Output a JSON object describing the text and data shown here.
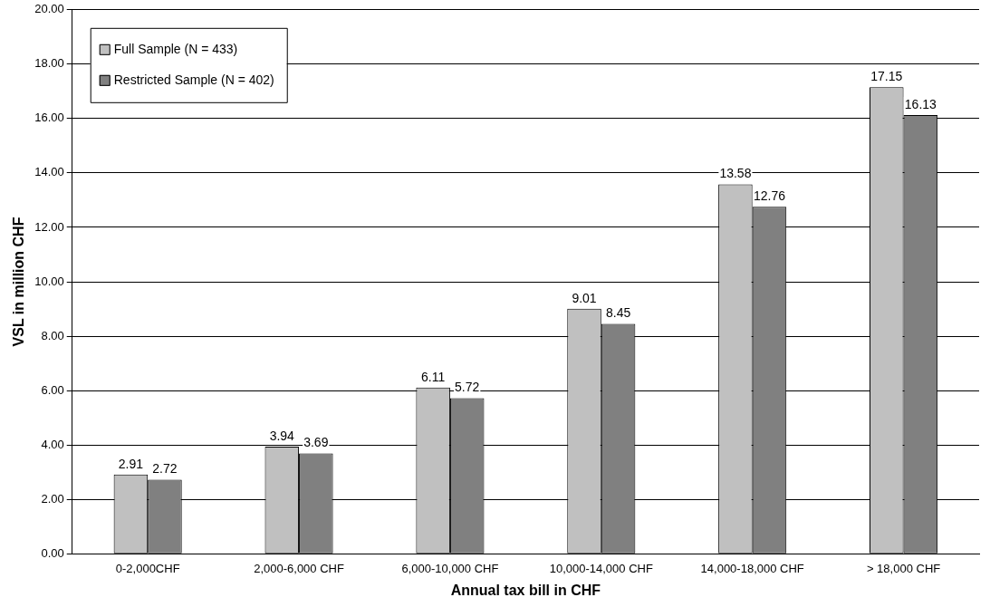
{
  "chart_data": {
    "type": "bar",
    "xlabel": "Annual tax bill in CHF",
    "ylabel": "VSL in million CHF",
    "categories": [
      "0-2,000CHF",
      "2,000-6,000 CHF",
      "6,000-10,000 CHF",
      "10,000-14,000 CHF",
      "14,000-18,000 CHF",
      "> 18,000 CHF"
    ],
    "series": [
      {
        "name": "Full Sample (N = 433)",
        "color": "#c0c0c0",
        "values": [
          2.91,
          3.94,
          6.11,
          9.01,
          13.58,
          17.15
        ]
      },
      {
        "name": "Restricted Sample (N = 402)",
        "color": "#808080",
        "values": [
          2.72,
          3.69,
          5.72,
          8.45,
          12.76,
          16.13
        ]
      }
    ],
    "ylim": [
      0,
      20
    ],
    "yticks": [
      {
        "value": 0,
        "label": "0.00"
      },
      {
        "value": 2,
        "label": "2.00"
      },
      {
        "value": 4,
        "label": "4.00"
      },
      {
        "value": 6,
        "label": "6.00"
      },
      {
        "value": 8,
        "label": "8.00"
      },
      {
        "value": 10,
        "label": "10.00"
      },
      {
        "value": 12,
        "label": "12.00"
      },
      {
        "value": 14,
        "label": "14.00"
      },
      {
        "value": 16,
        "label": "16.00"
      },
      {
        "value": 18,
        "label": "18.00"
      },
      {
        "value": 20,
        "label": "20.00"
      }
    ],
    "grid": "y",
    "legend": "top left",
    "data_labels": true
  }
}
